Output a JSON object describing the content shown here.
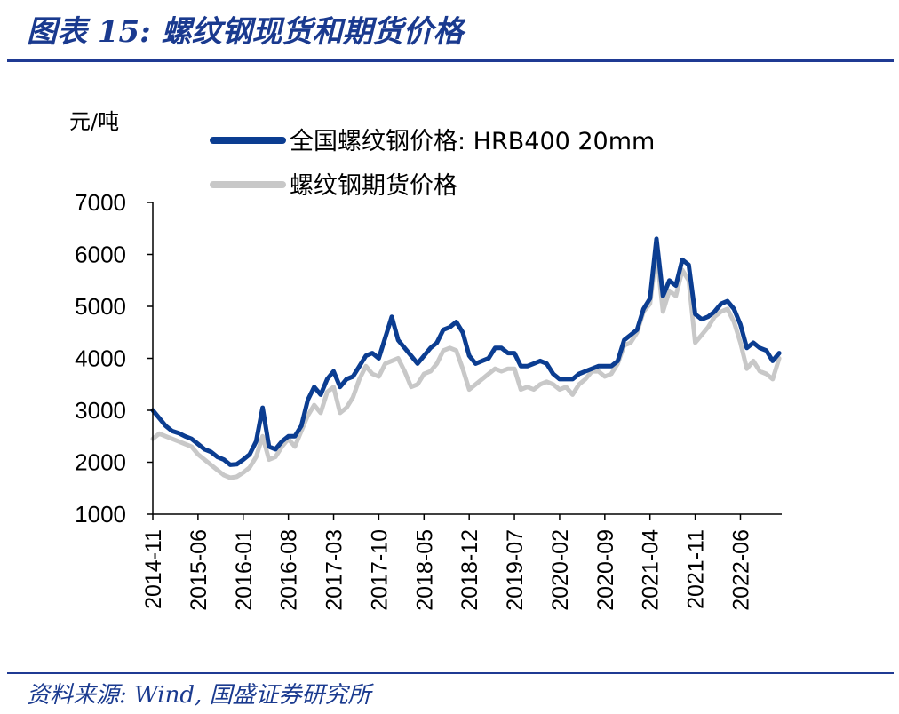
{
  "header": {
    "title": "图表 15:  螺纹钢现货和期货价格"
  },
  "footer": {
    "source": "资料来源:  Wind,  国盛证券研究所"
  },
  "colors": {
    "accent": "#1f3a93",
    "spot": "#0b3d91",
    "futures": "#c8c8c8"
  },
  "chart_data": {
    "type": "line",
    "unit_label": "元/吨",
    "ylim": [
      1000,
      7000
    ],
    "yticks": [
      1000,
      2000,
      3000,
      4000,
      5000,
      6000,
      7000
    ],
    "xticks": [
      "2014-11",
      "2015-06",
      "2016-01",
      "2016-08",
      "2017-03",
      "2017-10",
      "2018-05",
      "2018-12",
      "2019-07",
      "2020-02",
      "2020-09",
      "2021-04",
      "2021-11",
      "2022-06"
    ],
    "legend_position": "top",
    "grid": false,
    "series": [
      {
        "name": "全国螺纹钢价格:  HRB400 20mm",
        "points": [
          [
            "2014-11",
            3000
          ],
          [
            "2014-12",
            2850
          ],
          [
            "2015-01",
            2700
          ],
          [
            "2015-02",
            2600
          ],
          [
            "2015-03",
            2560
          ],
          [
            "2015-04",
            2500
          ],
          [
            "2015-05",
            2450
          ],
          [
            "2015-06",
            2350
          ],
          [
            "2015-07",
            2250
          ],
          [
            "2015-08",
            2200
          ],
          [
            "2015-09",
            2100
          ],
          [
            "2015-10",
            2050
          ],
          [
            "2015-11",
            1950
          ],
          [
            "2015-12",
            1960
          ],
          [
            "2016-01",
            2050
          ],
          [
            "2016-02",
            2150
          ],
          [
            "2016-03",
            2400
          ],
          [
            "2016-04",
            3050
          ],
          [
            "2016-05",
            2300
          ],
          [
            "2016-06",
            2250
          ],
          [
            "2016-07",
            2400
          ],
          [
            "2016-08",
            2500
          ],
          [
            "2016-09",
            2500
          ],
          [
            "2016-10",
            2700
          ],
          [
            "2016-11",
            3200
          ],
          [
            "2016-12",
            3450
          ],
          [
            "2017-01",
            3300
          ],
          [
            "2017-02",
            3600
          ],
          [
            "2017-03",
            3750
          ],
          [
            "2017-04",
            3450
          ],
          [
            "2017-05",
            3600
          ],
          [
            "2017-06",
            3650
          ],
          [
            "2017-07",
            3850
          ],
          [
            "2017-08",
            4050
          ],
          [
            "2017-09",
            4100
          ],
          [
            "2017-10",
            4000
          ],
          [
            "2017-11",
            4400
          ],
          [
            "2017-12",
            4800
          ],
          [
            "2018-01",
            4350
          ],
          [
            "2018-02",
            4200
          ],
          [
            "2018-03",
            4050
          ],
          [
            "2018-04",
            3900
          ],
          [
            "2018-05",
            4050
          ],
          [
            "2018-06",
            4200
          ],
          [
            "2018-07",
            4300
          ],
          [
            "2018-08",
            4550
          ],
          [
            "2018-09",
            4600
          ],
          [
            "2018-10",
            4700
          ],
          [
            "2018-11",
            4500
          ],
          [
            "2018-12",
            4050
          ],
          [
            "2019-01",
            3900
          ],
          [
            "2019-02",
            3950
          ],
          [
            "2019-03",
            4000
          ],
          [
            "2019-04",
            4200
          ],
          [
            "2019-05",
            4200
          ],
          [
            "2019-06",
            4100
          ],
          [
            "2019-07",
            4100
          ],
          [
            "2019-08",
            3850
          ],
          [
            "2019-09",
            3850
          ],
          [
            "2019-10",
            3900
          ],
          [
            "2019-11",
            3950
          ],
          [
            "2019-12",
            3900
          ],
          [
            "2020-01",
            3700
          ],
          [
            "2020-02",
            3600
          ],
          [
            "2020-03",
            3600
          ],
          [
            "2020-04",
            3600
          ],
          [
            "2020-05",
            3700
          ],
          [
            "2020-06",
            3750
          ],
          [
            "2020-07",
            3800
          ],
          [
            "2020-08",
            3850
          ],
          [
            "2020-09",
            3850
          ],
          [
            "2020-10",
            3850
          ],
          [
            "2020-11",
            3950
          ],
          [
            "2020-12",
            4350
          ],
          [
            "2021-01",
            4450
          ],
          [
            "2021-02",
            4550
          ],
          [
            "2021-03",
            4950
          ],
          [
            "2021-04",
            5150
          ],
          [
            "2021-05",
            6300
          ],
          [
            "2021-06",
            5200
          ],
          [
            "2021-07",
            5500
          ],
          [
            "2021-08",
            5400
          ],
          [
            "2021-09",
            5900
          ],
          [
            "2021-10",
            5800
          ],
          [
            "2021-11",
            4850
          ],
          [
            "2021-12",
            4750
          ],
          [
            "2022-01",
            4800
          ],
          [
            "2022-02",
            4900
          ],
          [
            "2022-03",
            5050
          ],
          [
            "2022-04",
            5100
          ],
          [
            "2022-05",
            4950
          ],
          [
            "2022-06",
            4650
          ],
          [
            "2022-07",
            4200
          ],
          [
            "2022-08",
            4300
          ],
          [
            "2022-09",
            4200
          ],
          [
            "2022-10",
            4150
          ],
          [
            "2022-11",
            3950
          ],
          [
            "2022-12",
            4100
          ]
        ]
      },
      {
        "name": "螺纹钢期货价格",
        "points": [
          [
            "2014-11",
            2450
          ],
          [
            "2014-12",
            2550
          ],
          [
            "2015-01",
            2500
          ],
          [
            "2015-02",
            2450
          ],
          [
            "2015-03",
            2400
          ],
          [
            "2015-04",
            2350
          ],
          [
            "2015-05",
            2300
          ],
          [
            "2015-06",
            2150
          ],
          [
            "2015-07",
            2050
          ],
          [
            "2015-08",
            1950
          ],
          [
            "2015-09",
            1850
          ],
          [
            "2015-10",
            1750
          ],
          [
            "2015-11",
            1700
          ],
          [
            "2015-12",
            1720
          ],
          [
            "2016-01",
            1800
          ],
          [
            "2016-02",
            1900
          ],
          [
            "2016-03",
            2100
          ],
          [
            "2016-04",
            2500
          ],
          [
            "2016-05",
            2050
          ],
          [
            "2016-06",
            2100
          ],
          [
            "2016-07",
            2300
          ],
          [
            "2016-08",
            2450
          ],
          [
            "2016-09",
            2300
          ],
          [
            "2016-10",
            2600
          ],
          [
            "2016-11",
            2900
          ],
          [
            "2016-12",
            3100
          ],
          [
            "2017-01",
            2950
          ],
          [
            "2017-02",
            3350
          ],
          [
            "2017-03",
            3450
          ],
          [
            "2017-04",
            2950
          ],
          [
            "2017-05",
            3050
          ],
          [
            "2017-06",
            3250
          ],
          [
            "2017-07",
            3600
          ],
          [
            "2017-08",
            3850
          ],
          [
            "2017-09",
            3700
          ],
          [
            "2017-10",
            3650
          ],
          [
            "2017-11",
            3900
          ],
          [
            "2017-12",
            3950
          ],
          [
            "2018-01",
            4000
          ],
          [
            "2018-02",
            3750
          ],
          [
            "2018-03",
            3450
          ],
          [
            "2018-04",
            3500
          ],
          [
            "2018-05",
            3700
          ],
          [
            "2018-06",
            3750
          ],
          [
            "2018-07",
            3900
          ],
          [
            "2018-08",
            4150
          ],
          [
            "2018-09",
            4200
          ],
          [
            "2018-10",
            4150
          ],
          [
            "2018-11",
            3800
          ],
          [
            "2018-12",
            3400
          ],
          [
            "2019-01",
            3500
          ],
          [
            "2019-02",
            3600
          ],
          [
            "2019-03",
            3700
          ],
          [
            "2019-04",
            3800
          ],
          [
            "2019-05",
            3750
          ],
          [
            "2019-06",
            3800
          ],
          [
            "2019-07",
            3800
          ],
          [
            "2019-08",
            3400
          ],
          [
            "2019-09",
            3450
          ],
          [
            "2019-10",
            3400
          ],
          [
            "2019-11",
            3500
          ],
          [
            "2019-12",
            3550
          ],
          [
            "2020-01",
            3500
          ],
          [
            "2020-02",
            3400
          ],
          [
            "2020-03",
            3450
          ],
          [
            "2020-04",
            3300
          ],
          [
            "2020-05",
            3500
          ],
          [
            "2020-06",
            3600
          ],
          [
            "2020-07",
            3750
          ],
          [
            "2020-08",
            3750
          ],
          [
            "2020-09",
            3650
          ],
          [
            "2020-10",
            3700
          ],
          [
            "2020-11",
            3900
          ],
          [
            "2020-12",
            4250
          ],
          [
            "2021-01",
            4300
          ],
          [
            "2021-02",
            4500
          ],
          [
            "2021-03",
            4900
          ],
          [
            "2021-04",
            5050
          ],
          [
            "2021-05",
            6050
          ],
          [
            "2021-06",
            4900
          ],
          [
            "2021-07",
            5300
          ],
          [
            "2021-08",
            5200
          ],
          [
            "2021-09",
            5700
          ],
          [
            "2021-10",
            5500
          ],
          [
            "2021-11",
            4300
          ],
          [
            "2021-12",
            4450
          ],
          [
            "2022-01",
            4600
          ],
          [
            "2022-02",
            4800
          ],
          [
            "2022-03",
            4900
          ],
          [
            "2022-04",
            4950
          ],
          [
            "2022-05",
            4700
          ],
          [
            "2022-06",
            4300
          ],
          [
            "2022-07",
            3800
          ],
          [
            "2022-08",
            3950
          ],
          [
            "2022-09",
            3750
          ],
          [
            "2022-10",
            3700
          ],
          [
            "2022-11",
            3600
          ],
          [
            "2022-12",
            4000
          ]
        ]
      }
    ]
  }
}
